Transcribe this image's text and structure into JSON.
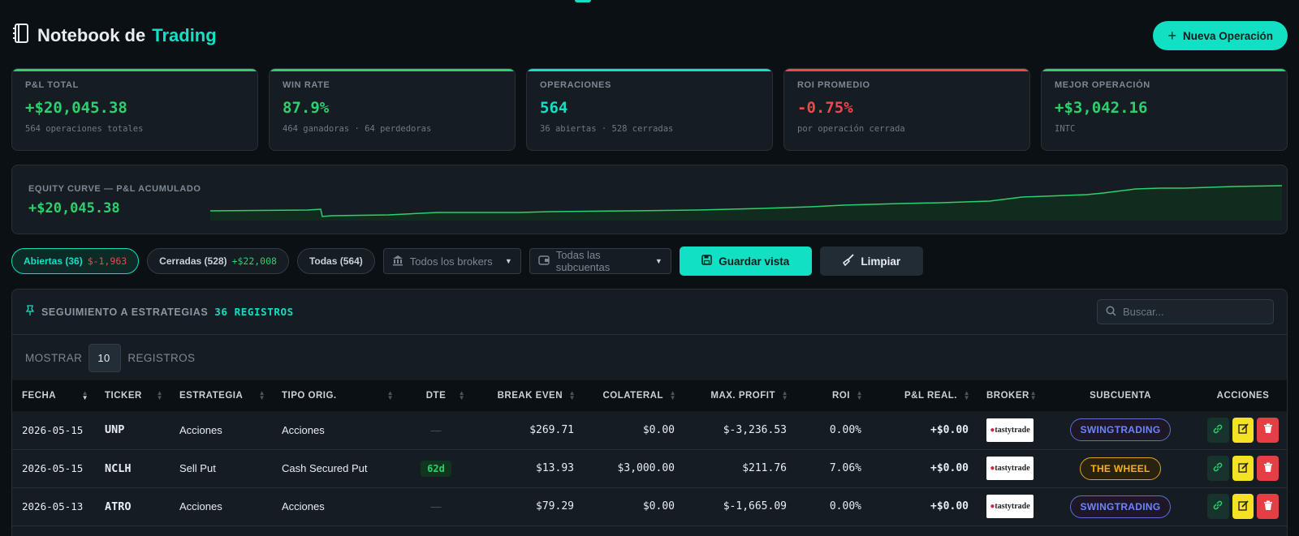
{
  "header": {
    "title_part1": "Notebook de",
    "title_part2": "Trading",
    "new_button": "Nueva Operación"
  },
  "kpis": [
    {
      "label": "P&L TOTAL",
      "value": "+$20,045.38",
      "sub": "564 operaciones totales",
      "color": "#2dd06e"
    },
    {
      "label": "WIN RATE",
      "value": "87.9%",
      "sub": "464 ganadoras · 64 perdedoras",
      "color": "#2dd06e"
    },
    {
      "label": "OPERACIONES",
      "value": "564",
      "sub": "36 abiertas · 528 cerradas",
      "color": "#12e0c4"
    },
    {
      "label": "ROI PROMEDIO",
      "value": "-0.75%",
      "sub": "por operación cerrada",
      "color": "#f0474f"
    },
    {
      "label": "MEJOR OPERACIÓN",
      "value": "+$3,042.16",
      "sub": "INTC",
      "color": "#2dd06e"
    }
  ],
  "equity": {
    "label": "EQUITY CURVE — P&L ACUMULADO",
    "value": "+$20,045.38"
  },
  "filters": {
    "open_label": "Abiertas (36)",
    "open_value": "$-1,963",
    "closed_label": "Cerradas (528)",
    "closed_value": "+$22,008",
    "all_label": "Todas (564)",
    "brokers_select": "Todos los brokers",
    "subaccounts_select": "Todas las subcuentas",
    "save_view": "Guardar vista",
    "clear": "Limpiar"
  },
  "panel": {
    "title": "SEGUIMIENTO A ESTRATEGIAS",
    "count": "36 REGISTROS",
    "search_placeholder": "Buscar...",
    "show_label": "MOSTRAR",
    "show_value": "10",
    "records_label": "REGISTROS"
  },
  "table": {
    "headers": [
      "FECHA",
      "TICKER",
      "ESTRATEGIA",
      "TIPO ORIG.",
      "DTE",
      "BREAK EVEN",
      "COLATERAL",
      "MAX. PROFIT",
      "ROI",
      "P&L REAL.",
      "BROKER",
      "SUBCUENTA",
      "ACCIONES"
    ],
    "rows": [
      {
        "fecha": "2026-05-15",
        "ticker": "UNP",
        "estrategia": "Acciones",
        "tipo": "Acciones",
        "dte": "—",
        "break_even": "$269.71",
        "colateral": "$0.00",
        "max_profit": "$-3,236.53",
        "roi": "0.00%",
        "pl": "+$0.00",
        "broker": "tastytrade",
        "subcuenta": "SWINGTRADING"
      },
      {
        "fecha": "2026-05-15",
        "ticker": "NCLH",
        "estrategia": "Sell Put",
        "tipo": "Cash Secured Put",
        "dte": "62d",
        "break_even": "$13.93",
        "colateral": "$3,000.00",
        "max_profit": "$211.76",
        "roi": "7.06%",
        "pl": "+$0.00",
        "broker": "tastytrade",
        "subcuenta": "THE WHEEL"
      },
      {
        "fecha": "2026-05-13",
        "ticker": "ATRO",
        "estrategia": "Acciones",
        "tipo": "Acciones",
        "dte": "—",
        "break_even": "$79.29",
        "colateral": "$0.00",
        "max_profit": "$-1,665.09",
        "roi": "0.00%",
        "pl": "+$0.00",
        "broker": "tastytrade",
        "subcuenta": "SWINGTRADING"
      }
    ]
  },
  "colors": {
    "accent": "#12e0c4",
    "positive": "#2dd06e",
    "negative": "#f0474f",
    "background": "#0b1014",
    "card": "#151c22"
  },
  "icons": {
    "brand": "notebook-icon",
    "new": "plus-icon",
    "brokers": "bank-icon",
    "subaccounts": "wallet-icon",
    "save": "save-icon",
    "clear": "broom-icon",
    "panel": "pin-icon",
    "search": "search-icon",
    "row_link": "link-icon",
    "row_edit": "edit-icon",
    "row_delete": "trash-icon"
  }
}
